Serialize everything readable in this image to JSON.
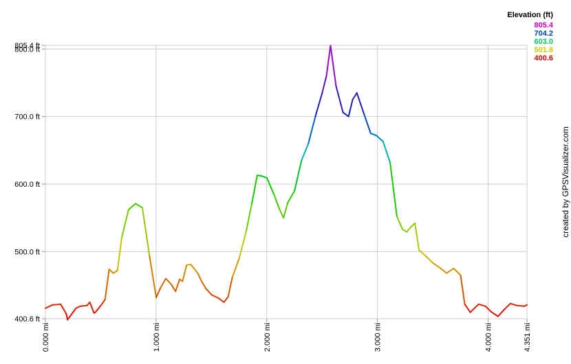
{
  "chart_data": {
    "type": "line",
    "xlabel": "",
    "ylabel": "",
    "xlim": [
      0,
      4.351
    ],
    "ylim": [
      400.6,
      805.4
    ],
    "x_ticks": [
      0,
      1,
      2,
      3,
      4,
      4.351
    ],
    "x_tick_labels": [
      "0.000 mi",
      "1.000 mi",
      "2.000 mi",
      "3.000 mi",
      "4.000 mi",
      "4.351 mi"
    ],
    "y_ticks": [
      400.6,
      500,
      600,
      700,
      800,
      805.4
    ],
    "y_tick_labels": [
      "400.6 ft",
      "500.0 ft",
      "600.0 ft",
      "700.0 ft",
      "800.0 ft",
      "805.4 ft"
    ],
    "grid": true,
    "legend": {
      "title": "Elevation (ft)",
      "placement": "top-right",
      "entries": [
        {
          "label": "805.4",
          "color": "#cc00cc"
        },
        {
          "label": "704.2",
          "color": "#0044cc"
        },
        {
          "label": "603.0",
          "color": "#00cc66"
        },
        {
          "label": "501.8",
          "color": "#cccc00"
        },
        {
          "label": "400.6",
          "color": "#dd0000"
        }
      ]
    },
    "color_scale": [
      {
        "v": 400.6,
        "color": "#dd0000"
      },
      {
        "v": 501.8,
        "color": "#cccc00"
      },
      {
        "v": 603.0,
        "color": "#00cc00"
      },
      {
        "v": 654.0,
        "color": "#00aacc"
      },
      {
        "v": 704.2,
        "color": "#0022bb"
      },
      {
        "v": 805.4,
        "color": "#cc00cc"
      }
    ],
    "series": [
      {
        "x": [
          0,
          0.063,
          0.138,
          0.188,
          0.2,
          0.276,
          0.313,
          0.376,
          0.401,
          0.439,
          0.451,
          0.501,
          0.539,
          0.576,
          0.613,
          0.651,
          0.689,
          0.751,
          0.814,
          0.876,
          0.939,
          1.001,
          1.039,
          1.088,
          1.139,
          1.176,
          1.213,
          1.239,
          1.276,
          1.313,
          1.376,
          1.414,
          1.451,
          1.501,
          1.564,
          1.613,
          1.651,
          1.689,
          1.751,
          1.814,
          1.864,
          1.914,
          1.951,
          2.001,
          2.064,
          2.114,
          2.151,
          2.189,
          2.251,
          2.314,
          2.376,
          2.439,
          2.501,
          2.539,
          2.576,
          2.626,
          2.689,
          2.739,
          2.776,
          2.814,
          2.876,
          2.939,
          2.989,
          3.051,
          3.114,
          3.176,
          3.226,
          3.264,
          3.301,
          3.339,
          3.376,
          3.439,
          3.501,
          3.564,
          3.626,
          3.689,
          3.751,
          3.789,
          3.839,
          3.914,
          3.976,
          4.026,
          4.089,
          4.151,
          4.201,
          4.264,
          4.326,
          4.351
        ],
        "y": [
          416,
          421,
          422,
          408,
          399,
          416,
          419,
          420,
          425,
          409,
          410,
          420,
          429,
          474,
          468,
          472,
          520,
          562,
          571,
          565,
          495,
          432,
          446,
          460,
          451,
          441,
          459,
          456,
          480,
          481,
          468,
          455,
          445,
          436,
          431,
          425,
          433,
          462,
          490,
          530,
          570,
          613,
          612,
          609,
          585,
          563,
          550,
          572,
          590,
          635,
          660,
          700,
          735,
          760,
          805,
          745,
          706,
          700,
          725,
          735,
          705,
          675,
          672,
          663,
          632,
          552,
          533,
          529,
          536,
          542,
          502,
          493,
          483,
          476,
          468,
          475,
          465,
          422,
          410,
          422,
          419,
          411,
          404,
          415,
          423,
          420,
          419,
          421
        ]
      }
    ],
    "credit": "created by GPSVisualizer.com"
  }
}
